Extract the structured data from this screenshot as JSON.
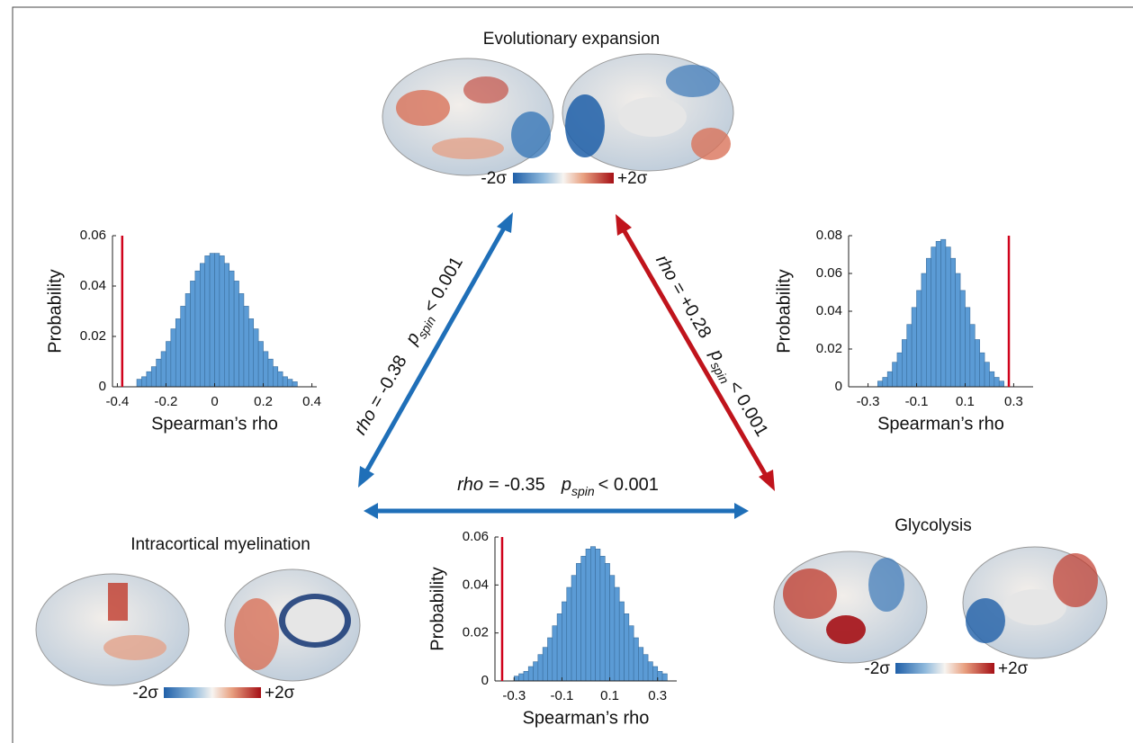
{
  "chart_data": [
    {
      "type": "histogram",
      "ylabel": "Probability",
      "xlabel": "Spearman’s rho",
      "bins": [
        -0.32,
        -0.3,
        -0.28,
        -0.26,
        -0.24,
        -0.22,
        -0.2,
        -0.18,
        -0.16,
        -0.14,
        -0.12,
        -0.1,
        -0.08,
        -0.06,
        -0.04,
        -0.02,
        0,
        0.02,
        0.04,
        0.06,
        0.08,
        0.1,
        0.12,
        0.14,
        0.16,
        0.18,
        0.2,
        0.22,
        0.24,
        0.26,
        0.28,
        0.3,
        0.32,
        0.34
      ],
      "values": [
        0.003,
        0.004,
        0.006,
        0.008,
        0.011,
        0.014,
        0.018,
        0.023,
        0.027,
        0.032,
        0.037,
        0.042,
        0.046,
        0.049,
        0.052,
        0.053,
        0.053,
        0.052,
        0.049,
        0.046,
        0.042,
        0.037,
        0.032,
        0.027,
        0.023,
        0.018,
        0.014,
        0.011,
        0.008,
        0.006,
        0.004,
        0.003,
        0.002
      ],
      "color": "#5b9bd5",
      "xlim": [
        -0.42,
        0.42
      ],
      "ylim": [
        0,
        0.06
      ],
      "xticks": [
        -0.4,
        -0.2,
        0,
        0.2,
        0.4
      ],
      "yticks": [
        0,
        0.02,
        0.04,
        0.06
      ],
      "marker": -0.38,
      "marker_color": "#d0021b"
    },
    {
      "type": "histogram",
      "ylabel": "Probability",
      "xlabel": "Spearman’s rho",
      "bins": [
        -0.26,
        -0.24,
        -0.22,
        -0.2,
        -0.18,
        -0.16,
        -0.14,
        -0.12,
        -0.1,
        -0.08,
        -0.06,
        -0.04,
        -0.02,
        0,
        0.02,
        0.04,
        0.06,
        0.08,
        0.1,
        0.12,
        0.14,
        0.16,
        0.18,
        0.2,
        0.22,
        0.24,
        0.26
      ],
      "values": [
        0.003,
        0.005,
        0.008,
        0.013,
        0.018,
        0.025,
        0.033,
        0.042,
        0.051,
        0.06,
        0.068,
        0.074,
        0.077,
        0.078,
        0.074,
        0.068,
        0.06,
        0.051,
        0.042,
        0.033,
        0.025,
        0.018,
        0.013,
        0.008,
        0.005,
        0.003
      ],
      "color": "#5b9bd5",
      "xlim": [
        -0.38,
        0.38
      ],
      "ylim": [
        0,
        0.08
      ],
      "xticks": [
        -0.3,
        -0.1,
        0.1,
        0.3
      ],
      "yticks": [
        0,
        0.02,
        0.04,
        0.06,
        0.08
      ],
      "marker": 0.28,
      "marker_color": "#d0021b"
    },
    {
      "type": "histogram",
      "ylabel": "Probability",
      "xlabel": "Spearman’s rho",
      "bins": [
        -0.3,
        -0.28,
        -0.26,
        -0.24,
        -0.22,
        -0.2,
        -0.18,
        -0.16,
        -0.14,
        -0.12,
        -0.1,
        -0.08,
        -0.06,
        -0.04,
        -0.02,
        0,
        0.02,
        0.04,
        0.06,
        0.08,
        0.1,
        0.12,
        0.14,
        0.16,
        0.18,
        0.2,
        0.22,
        0.24,
        0.26,
        0.28,
        0.3,
        0.32,
        0.34
      ],
      "values": [
        0.002,
        0.003,
        0.004,
        0.006,
        0.008,
        0.011,
        0.014,
        0.018,
        0.023,
        0.028,
        0.033,
        0.039,
        0.044,
        0.049,
        0.052,
        0.055,
        0.056,
        0.055,
        0.052,
        0.049,
        0.044,
        0.039,
        0.033,
        0.028,
        0.023,
        0.018,
        0.014,
        0.011,
        0.008,
        0.006,
        0.004,
        0.003
      ],
      "color": "#5b9bd5",
      "xlim": [
        -0.38,
        0.38
      ],
      "ylim": [
        0,
        0.06
      ],
      "xticks": [
        -0.3,
        -0.1,
        0.1,
        0.3
      ],
      "yticks": [
        0,
        0.02,
        0.04,
        0.06
      ],
      "marker": -0.35,
      "marker_color": "#d0021b"
    }
  ],
  "maps": [
    {
      "title": "Evolutionary expansion",
      "scale_min": "-2σ",
      "scale_max": "+2σ"
    },
    {
      "title": "Intracortical myelination",
      "scale_min": "-2σ",
      "scale_max": "+2σ"
    },
    {
      "title": "Glycolysis",
      "scale_min": "-2σ",
      "scale_max": "+2σ"
    }
  ],
  "links": [
    {
      "rho": "rho",
      "value": "=  -0.38",
      "p": "p",
      "sub": "spin",
      "p_value": "< 0.001"
    },
    {
      "rho": "rho",
      "value": "=  +0.28",
      "p": "p",
      "sub": "spin",
      "p_value": "< 0.001"
    },
    {
      "rho": "rho",
      "value": "=  -0.35",
      "p": "p",
      "sub": "spin",
      "p_value": "< 0.001"
    }
  ]
}
